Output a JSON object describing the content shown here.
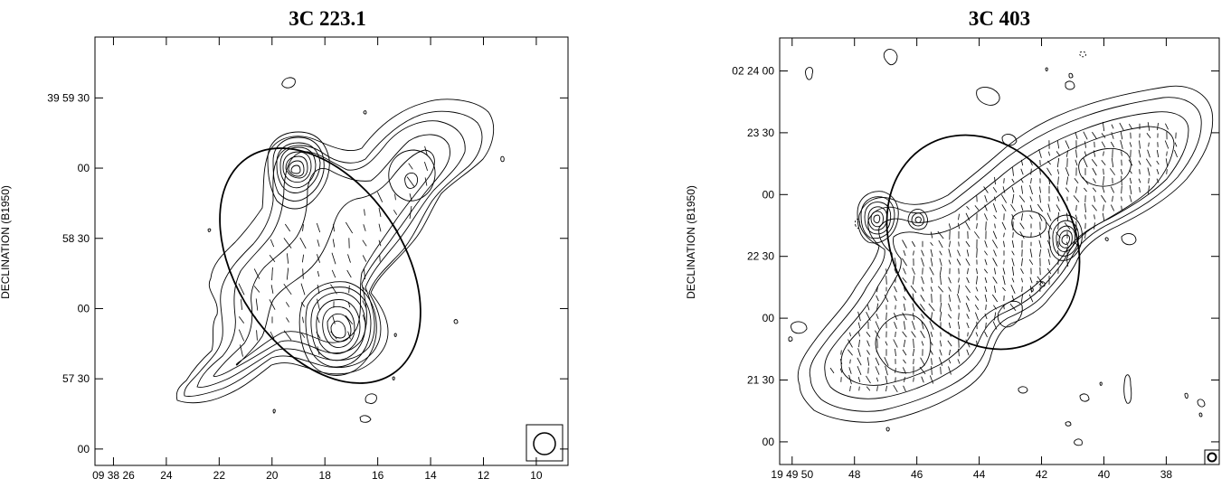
{
  "chart_data": [
    {
      "type": "contour",
      "title": "3C 223.1",
      "ylabel": "DECLINATION (B1950)",
      "xlabel": "",
      "x_ticks": [
        {
          "value": 26,
          "label": "09 38 26"
        },
        {
          "value": 24,
          "label": "24"
        },
        {
          "value": 22,
          "label": "22"
        },
        {
          "value": 20,
          "label": "20"
        },
        {
          "value": 18,
          "label": "18"
        },
        {
          "value": 16,
          "label": "16"
        },
        {
          "value": 14,
          "label": "14"
        },
        {
          "value": 12,
          "label": "12"
        },
        {
          "value": 10,
          "label": "10"
        }
      ],
      "y_ticks": [
        {
          "value": 150,
          "label": "39 59 30"
        },
        {
          "value": 120,
          "label": "00"
        },
        {
          "value": 90,
          "label": "58 30"
        },
        {
          "value": 60,
          "label": "00"
        },
        {
          "value": 30,
          "label": "57 30"
        },
        {
          "value": 0,
          "label": "00"
        }
      ],
      "xlim": [
        26.7,
        8.8
      ],
      "ylim": [
        -7,
        176
      ],
      "features": {
        "lobe_north": {
          "ra": 18.9,
          "dec": 118
        },
        "lobe_south": {
          "ra": 17.5,
          "dec": 53
        },
        "ellipse": {
          "ra": 18.0,
          "dec": 78,
          "width_s": 9.2,
          "height_arcsec": 92,
          "rotation_deg": -34
        },
        "beam": "circle, lower-right corner"
      }
    },
    {
      "type": "contour",
      "title": "3C 403",
      "ylabel": "DECLINATION (B1950)",
      "xlabel": "",
      "x_ticks": [
        {
          "value": 50,
          "label": "19 49 50"
        },
        {
          "value": 48,
          "label": "48"
        },
        {
          "value": 46,
          "label": "46"
        },
        {
          "value": 44,
          "label": "44"
        },
        {
          "value": 42,
          "label": "42"
        },
        {
          "value": 40,
          "label": "40"
        },
        {
          "value": 38,
          "label": "38"
        }
      ],
      "y_ticks": [
        {
          "value": 120,
          "label": "02 24 00"
        },
        {
          "value": 90,
          "label": "23 30"
        },
        {
          "value": 60,
          "label": "00"
        },
        {
          "value": 30,
          "label": "22 30"
        },
        {
          "value": 0,
          "label": "00"
        },
        {
          "value": -30,
          "label": "21 30"
        },
        {
          "value": -60,
          "label": "00"
        }
      ],
      "xlim": [
        50.4,
        36.3
      ],
      "ylim": [
        -71,
        136
      ],
      "features": {
        "hotspot_east": {
          "ra": 47.5,
          "dec": 45
        },
        "core": {
          "ra": 46.3,
          "dec": 43
        },
        "hotspot_west": {
          "ra": 41.4,
          "dec": 37
        },
        "ellipse": {
          "ra": 44.4,
          "dec": 39,
          "width_s": 9.6,
          "height_arcsec": 127,
          "rotation_deg": -30
        },
        "beam": "small circle, lower-right corner"
      }
    }
  ]
}
